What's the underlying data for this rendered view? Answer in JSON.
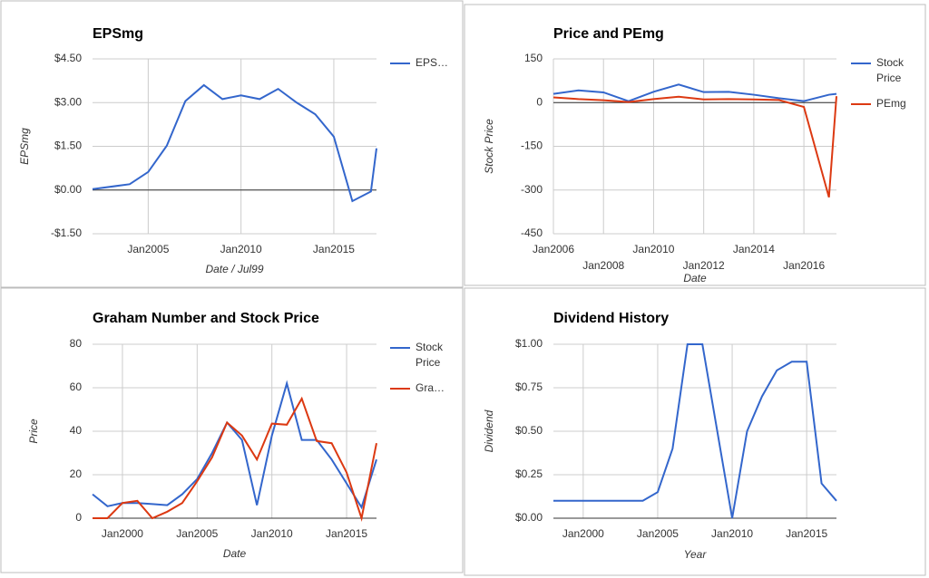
{
  "chart_data": [
    {
      "type": "line",
      "title": "EPSmg",
      "xlabel": "Date / Jul99",
      "ylabel": "EPSmg",
      "x": [
        2002,
        2004,
        2005,
        2006,
        2007,
        2008,
        2009,
        2010,
        2011,
        2012,
        2013,
        2014,
        2015,
        2016,
        2017,
        2017.3
      ],
      "series": [
        {
          "name": "EPS…",
          "color": "#3366cc",
          "values": [
            0.03,
            0.2,
            0.62,
            1.52,
            3.05,
            3.6,
            3.12,
            3.25,
            3.12,
            3.47,
            3.0,
            2.6,
            1.83,
            -0.38,
            -0.05,
            1.43
          ]
        }
      ],
      "xlim": [
        2002,
        2017.3
      ],
      "xticks": [
        {
          "value": 2005,
          "label": "Jan2005"
        },
        {
          "value": 2010,
          "label": "Jan2010"
        },
        {
          "value": 2015,
          "label": "Jan2015"
        }
      ],
      "ylim": [
        -1.5,
        4.5
      ],
      "yticks": [
        {
          "value": -1.5,
          "label": "-$1.50"
        },
        {
          "value": 0,
          "label": "$0.00"
        },
        {
          "value": 1.5,
          "label": "$1.50"
        },
        {
          "value": 3,
          "label": "$3.00"
        },
        {
          "value": 4.5,
          "label": "$4.50"
        }
      ],
      "grid": true
    },
    {
      "type": "line",
      "title": "Price and PEmg",
      "xlabel": "Date",
      "ylabel": "Stock Price",
      "x": [
        2006,
        2007,
        2008,
        2009,
        2010,
        2011,
        2012,
        2013,
        2014,
        2015,
        2016,
        2017,
        2017.3
      ],
      "series": [
        {
          "name": "Stock Price",
          "color": "#3366cc",
          "values": [
            30,
            42,
            35,
            5,
            37,
            62,
            36,
            37,
            27,
            15,
            5,
            27,
            30
          ]
        },
        {
          "name": "PEmg",
          "color": "#dc3912",
          "values": [
            18,
            12,
            8,
            2,
            12,
            20,
            11,
            12,
            11,
            9,
            -15,
            -325,
            22
          ]
        }
      ],
      "xlim": [
        2006,
        2017.3
      ],
      "xticks": [
        {
          "value": 2006,
          "label": "Jan2006"
        },
        {
          "value": 2008,
          "label": "Jan2008"
        },
        {
          "value": 2010,
          "label": "Jan2010"
        },
        {
          "value": 2012,
          "label": "Jan2012"
        },
        {
          "value": 2014,
          "label": "Jan2014"
        },
        {
          "value": 2016,
          "label": "Jan2016"
        }
      ],
      "ylim": [
        -450,
        150
      ],
      "yticks": [
        -450,
        -300,
        -150,
        0,
        150
      ],
      "grid": true
    },
    {
      "type": "line",
      "title": "Graham Number and Stock Price",
      "xlabel": "Date",
      "ylabel": "Price",
      "x": [
        1998,
        1999,
        2000,
        2001,
        2002,
        2003,
        2004,
        2005,
        2006,
        2007,
        2008,
        2009,
        2010,
        2011,
        2012,
        2013,
        2014,
        2015,
        2016,
        2017
      ],
      "series": [
        {
          "name": "Stock Price",
          "color": "#3366cc",
          "values": [
            11,
            5.5,
            7,
            7,
            6.5,
            6,
            11,
            18,
            30,
            44,
            36,
            6,
            38,
            62,
            36,
            36,
            27,
            16,
            5,
            27
          ]
        },
        {
          "name": "Gra…",
          "color": "#dc3912",
          "values": [
            0,
            0,
            7,
            8,
            0,
            3,
            7,
            17,
            28,
            44,
            38,
            27,
            43.5,
            43,
            55,
            35.5,
            34.5,
            21,
            0,
            34.5
          ]
        }
      ],
      "xlim": [
        1998,
        2017
      ],
      "xticks": [
        {
          "value": 2000,
          "label": "Jan2000"
        },
        {
          "value": 2005,
          "label": "Jan2005"
        },
        {
          "value": 2010,
          "label": "Jan2010"
        },
        {
          "value": 2015,
          "label": "Jan2015"
        }
      ],
      "ylim": [
        0,
        80
      ],
      "yticks": [
        0,
        20,
        40,
        60,
        80
      ],
      "grid": true
    },
    {
      "type": "line",
      "title": "Dividend History",
      "xlabel": "Year",
      "ylabel": "Dividend",
      "x": [
        1998,
        1999,
        2000,
        2001,
        2002,
        2003,
        2004,
        2005,
        2006,
        2007,
        2008,
        2010,
        2011,
        2012,
        2013,
        2014,
        2015,
        2016,
        2017
      ],
      "series": [
        {
          "color": "#3366cc",
          "values": [
            0.1,
            0.1,
            0.1,
            0.1,
            0.1,
            0.1,
            0.1,
            0.15,
            0.4,
            1.0,
            1.0,
            0,
            0.5,
            0.7,
            0.85,
            0.9,
            0.9,
            0.2,
            0.1
          ]
        }
      ],
      "xlim": [
        1998,
        2017
      ],
      "xticks": [
        {
          "value": 2000,
          "label": "Jan2000"
        },
        {
          "value": 2005,
          "label": "Jan2005"
        },
        {
          "value": 2010,
          "label": "Jan2010"
        },
        {
          "value": 2015,
          "label": "Jan2015"
        }
      ],
      "ylim": [
        0,
        1
      ],
      "yticks": [
        {
          "value": 0,
          "label": "$0.00"
        },
        {
          "value": 0.25,
          "label": "$0.25"
        },
        {
          "value": 0.5,
          "label": "$0.50"
        },
        {
          "value": 0.75,
          "label": "$0.75"
        },
        {
          "value": 1,
          "label": "$1.00"
        }
      ],
      "grid": true
    }
  ]
}
